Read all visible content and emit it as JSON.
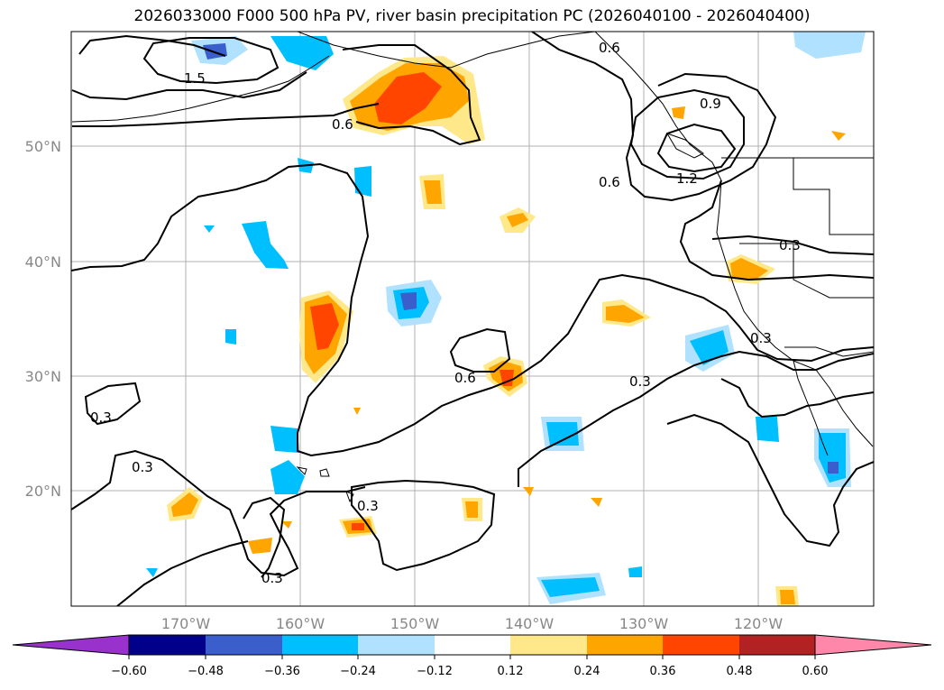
{
  "title": "2026033000 F000 500 hPa PV, river basin precipitation PC (2026040100 - 2026040400)",
  "lat_labels": [
    "50°N",
    "40°N",
    "30°N",
    "20°N"
  ],
  "lon_labels": [
    "170°W",
    "160°W",
    "150°W",
    "140°W",
    "130°W",
    "120°W"
  ],
  "contour_labels": [
    "1.5",
    "0.6",
    "0.6",
    "0.9",
    "0.6",
    "1.2",
    "0.3",
    "0.6",
    "0.3",
    "0.3",
    "0.3",
    "0.3",
    "0.3",
    "0.3"
  ],
  "colorbar": {
    "tick_labels": [
      "−0.60",
      "−0.48",
      "−0.36",
      "−0.24",
      "−0.12",
      "0.12",
      "0.24",
      "0.36",
      "0.48",
      "0.60"
    ],
    "colors": [
      "#9932cc",
      "#00008b",
      "#3a5fcd",
      "#00bfff",
      "#b0e2ff",
      "#ffffff",
      "#ffe88a",
      "#ffa500",
      "#ff4500",
      "#b22222",
      "#ff88aa"
    ]
  },
  "legend_colors": {
    "neg_light": "#b0e2ff",
    "neg_mid": "#00bfff",
    "neg_strong": "#3a5fcd",
    "neg_max": "#00008b",
    "pos_light": "#ffe88a",
    "pos_mid": "#ffa500",
    "pos_strong": "#ff4500"
  }
}
